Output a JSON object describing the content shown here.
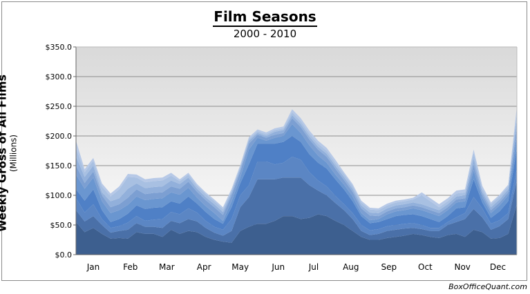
{
  "chart_data": {
    "type": "area",
    "stacked": true,
    "title": "Film Seasons",
    "subtitle": "2000 - 2010",
    "ylabel": "Weekly Gross of All Films",
    "ylabel_unit": "(Millions)",
    "xlabel": "",
    "ylim": [
      0,
      350
    ],
    "yticks": [
      0,
      50,
      100,
      150,
      200,
      250,
      300,
      350
    ],
    "ytick_labels": [
      "$0.0",
      "$50.0",
      "$100.0",
      "$150.0",
      "$200.0",
      "$250.0",
      "$300.0",
      "$350.0"
    ],
    "x": [
      1,
      2,
      3,
      4,
      5,
      6,
      7,
      8,
      9,
      10,
      11,
      12,
      13,
      14,
      15,
      16,
      17,
      18,
      19,
      20,
      21,
      22,
      23,
      24,
      25,
      26,
      27,
      28,
      29,
      30,
      31,
      32,
      33,
      34,
      35,
      36,
      37,
      38,
      39,
      40,
      41,
      42,
      43,
      44,
      45,
      46,
      47,
      48,
      49,
      50,
      51,
      52
    ],
    "month_ticks": [
      {
        "label": "Jan",
        "x": 3
      },
      {
        "label": "Feb",
        "x": 7.3
      },
      {
        "label": "Mar",
        "x": 11.5
      },
      {
        "label": "Apr",
        "x": 15.8
      },
      {
        "label": "May",
        "x": 20
      },
      {
        "label": "Jun",
        "x": 24.4
      },
      {
        "label": "Jul",
        "x": 28.5
      },
      {
        "label": "Aug",
        "x": 32.8
      },
      {
        "label": "Sep",
        "x": 37.2
      },
      {
        "label": "Oct",
        "x": 41.4
      },
      {
        "label": "Nov",
        "x": 45.7
      },
      {
        "label": "Dec",
        "x": 49.8
      }
    ],
    "grid": true,
    "legend": "none",
    "colors": [
      "#3d5f8f",
      "#4a70a8",
      "#5b86c4",
      "#4f80c6",
      "#6a96d0",
      "#7c9fd2",
      "#92b0db",
      "#a8c0e2",
      "#b7c9e7"
    ],
    "background_gradient": [
      "#d9d9d9",
      "#ffffff"
    ],
    "series": [
      {
        "values": [
          55,
          38,
          45,
          35,
          27,
          28,
          27,
          38,
          35,
          35,
          30,
          42,
          35,
          40,
          38,
          30,
          25,
          22,
          20,
          40,
          47,
          52,
          52,
          57,
          65,
          65,
          60,
          62,
          68,
          65,
          57,
          50,
          40,
          30,
          25,
          25,
          28,
          30,
          32,
          35,
          33,
          30,
          28,
          33,
          35,
          30,
          42,
          38,
          27,
          28,
          35,
          85
        ]
      },
      {
        "values": [
          20,
          18,
          20,
          15,
          10,
          12,
          15,
          15,
          12,
          12,
          15,
          15,
          18,
          20,
          18,
          15,
          12,
          10,
          20,
          40,
          50,
          75,
          75,
          70,
          65,
          65,
          70,
          55,
          40,
          35,
          30,
          25,
          20,
          10,
          8,
          10,
          12,
          12,
          12,
          10,
          10,
          10,
          12,
          17,
          20,
          30,
          35,
          25,
          15,
          20,
          25,
          40
        ]
      },
      {
        "values": [
          20,
          15,
          20,
          10,
          8,
          8,
          12,
          12,
          10,
          12,
          15,
          15,
          15,
          18,
          15,
          12,
          10,
          10,
          20,
          20,
          20,
          30,
          30,
          25,
          25,
          35,
          30,
          22,
          17,
          15,
          12,
          10,
          10,
          10,
          8,
          8,
          8,
          8,
          8,
          8,
          7,
          5,
          5,
          5,
          8,
          10,
          20,
          15,
          10,
          10,
          10,
          20
        ]
      },
      {
        "values": [
          15,
          20,
          25,
          15,
          10,
          12,
          15,
          18,
          20,
          20,
          20,
          18,
          18,
          20,
          15,
          15,
          13,
          10,
          20,
          20,
          35,
          30,
          30,
          35,
          35,
          35,
          30,
          30,
          30,
          30,
          28,
          25,
          20,
          15,
          12,
          12,
          12,
          15,
          15,
          15,
          15,
          15,
          10,
          10,
          15,
          10,
          30,
          10,
          10,
          15,
          20,
          35
        ]
      },
      {
        "values": [
          25,
          20,
          20,
          15,
          15,
          15,
          15,
          15,
          15,
          15,
          15,
          15,
          15,
          15,
          10,
          10,
          10,
          5,
          10,
          10,
          25,
          10,
          5,
          10,
          10,
          20,
          15,
          15,
          12,
          10,
          8,
          8,
          8,
          5,
          5,
          5,
          8,
          8,
          8,
          10,
          10,
          10,
          10,
          10,
          10,
          10,
          15,
          8,
          8,
          10,
          10,
          20
        ]
      },
      {
        "values": [
          15,
          10,
          10,
          10,
          10,
          10,
          12,
          12,
          10,
          10,
          10,
          10,
          10,
          10,
          10,
          10,
          10,
          10,
          10,
          10,
          10,
          5,
          5,
          5,
          5,
          10,
          10,
          10,
          10,
          10,
          10,
          8,
          8,
          8,
          8,
          5,
          5,
          5,
          5,
          5,
          5,
          5,
          5,
          5,
          5,
          5,
          10,
          5,
          5,
          5,
          5,
          15
        ]
      },
      {
        "values": [
          15,
          10,
          10,
          5,
          10,
          10,
          15,
          10,
          10,
          10,
          10,
          10,
          8,
          7,
          5,
          5,
          5,
          5,
          5,
          5,
          5,
          3,
          3,
          5,
          5,
          5,
          5,
          5,
          5,
          5,
          5,
          5,
          5,
          5,
          5,
          5,
          5,
          5,
          5,
          5,
          5,
          5,
          5,
          5,
          5,
          5,
          10,
          5,
          5,
          5,
          5,
          15
        ]
      },
      {
        "values": [
          15,
          8,
          8,
          10,
          8,
          15,
          20,
          10,
          10,
          10,
          10,
          8,
          5,
          5,
          5,
          5,
          5,
          5,
          3,
          3,
          3,
          3,
          3,
          3,
          3,
          5,
          5,
          5,
          5,
          5,
          5,
          5,
          5,
          5,
          5,
          5,
          5,
          5,
          5,
          5,
          15,
          10,
          5,
          5,
          5,
          5,
          10,
          5,
          5,
          5,
          5,
          10
        ]
      },
      {
        "values": [
          12,
          5,
          5,
          5,
          5,
          5,
          5,
          5,
          5,
          5,
          5,
          5,
          3,
          3,
          3,
          3,
          3,
          3,
          3,
          3,
          3,
          3,
          3,
          3,
          3,
          5,
          5,
          5,
          5,
          5,
          5,
          3,
          3,
          3,
          3,
          3,
          3,
          3,
          3,
          3,
          5,
          5,
          5,
          5,
          5,
          5,
          5,
          5,
          3,
          3,
          3,
          10
        ]
      }
    ]
  },
  "footer": {
    "credit": "BoxOfficeQuant.com"
  }
}
